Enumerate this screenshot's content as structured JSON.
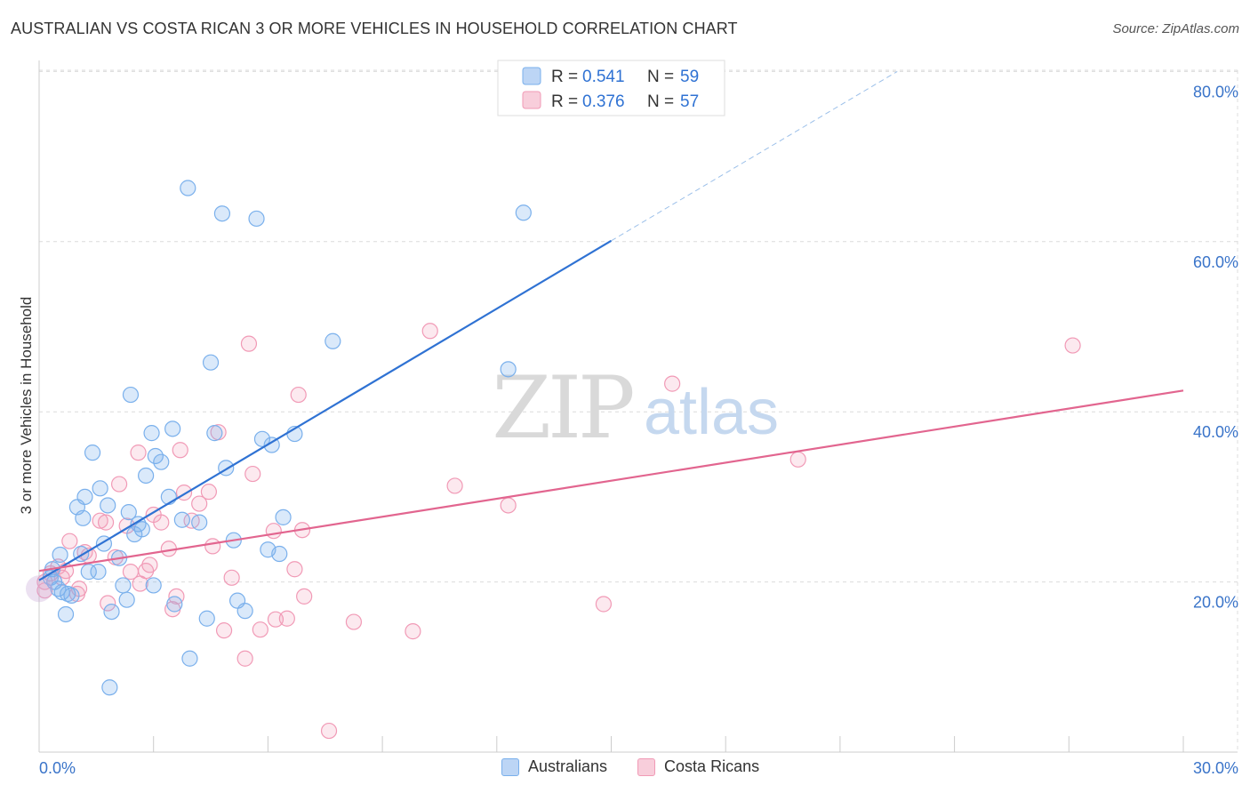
{
  "title": "AUSTRALIAN VS COSTA RICAN 3 OR MORE VEHICLES IN HOUSEHOLD CORRELATION CHART",
  "source": "Source: ZipAtlas.com",
  "watermark": {
    "zip": "ZIP",
    "atlas": "atlas"
  },
  "chart_data": {
    "type": "scatter",
    "xlabel": "",
    "ylabel": "3 or more Vehicles in Household",
    "xlim": [
      0,
      30
    ],
    "ylim": [
      0,
      82
    ],
    "x_tick_labels": [
      "0.0%",
      "30.0%"
    ],
    "y_ticks": [
      20,
      40,
      60,
      80
    ],
    "y_tick_labels": [
      "20.0%",
      "40.0%",
      "60.0%",
      "80.0%"
    ],
    "grid": true,
    "legend": [
      {
        "r_label": "R =",
        "r_value": "0.541",
        "n_label": "N =",
        "n_value": "59"
      },
      {
        "r_label": "R =",
        "r_value": "0.376",
        "n_label": "N =",
        "n_value": "57"
      }
    ],
    "series": [
      {
        "name": "Australians",
        "color": "#7ab0ec",
        "line_color": "#2f72d3",
        "trend": {
          "x0": 0,
          "y0": 20.2,
          "x1": 15,
          "y1": 60.1,
          "dashed_to_x": 22.5,
          "dashed_to_y": 80.0
        },
        "points": [
          [
            0.3,
            20.5
          ],
          [
            0.35,
            21.5
          ],
          [
            0.4,
            20.0
          ],
          [
            0.5,
            19.2
          ],
          [
            0.6,
            18.8
          ],
          [
            0.55,
            23.2
          ],
          [
            0.7,
            16.2
          ],
          [
            0.75,
            18.6
          ],
          [
            0.85,
            18.4
          ],
          [
            1.0,
            28.8
          ],
          [
            1.1,
            23.3
          ],
          [
            1.15,
            27.5
          ],
          [
            1.2,
            30.0
          ],
          [
            1.3,
            21.2
          ],
          [
            1.4,
            35.2
          ],
          [
            1.55,
            21.2
          ],
          [
            1.6,
            31.0
          ],
          [
            1.7,
            24.5
          ],
          [
            1.8,
            29.0
          ],
          [
            1.9,
            16.5
          ],
          [
            1.85,
            7.6
          ],
          [
            2.1,
            22.8
          ],
          [
            2.2,
            19.6
          ],
          [
            2.3,
            17.9
          ],
          [
            2.35,
            28.2
          ],
          [
            2.4,
            42.0
          ],
          [
            2.5,
            25.6
          ],
          [
            2.6,
            26.8
          ],
          [
            2.7,
            26.2
          ],
          [
            2.8,
            32.5
          ],
          [
            2.95,
            37.5
          ],
          [
            3.0,
            19.6
          ],
          [
            3.05,
            34.8
          ],
          [
            3.2,
            34.1
          ],
          [
            3.4,
            30.0
          ],
          [
            3.5,
            38.0
          ],
          [
            3.55,
            17.4
          ],
          [
            3.75,
            27.3
          ],
          [
            3.9,
            66.3
          ],
          [
            3.95,
            11.0
          ],
          [
            4.2,
            27.0
          ],
          [
            4.4,
            15.7
          ],
          [
            4.5,
            45.8
          ],
          [
            4.6,
            37.5
          ],
          [
            4.8,
            63.3
          ],
          [
            4.9,
            33.4
          ],
          [
            5.1,
            24.9
          ],
          [
            5.2,
            17.8
          ],
          [
            5.4,
            16.6
          ],
          [
            5.7,
            62.7
          ],
          [
            5.85,
            36.8
          ],
          [
            6.0,
            23.8
          ],
          [
            6.1,
            36.1
          ],
          [
            6.3,
            23.3
          ],
          [
            6.4,
            27.6
          ],
          [
            6.7,
            37.4
          ],
          [
            7.7,
            48.3
          ],
          [
            12.3,
            45.0
          ],
          [
            12.7,
            63.4
          ]
        ]
      },
      {
        "name": "Costa Ricans",
        "color": "#f19ab6",
        "line_color": "#e2658f",
        "trend": {
          "x0": 0,
          "y0": 21.3,
          "x1": 30,
          "y1": 42.5
        },
        "points": [
          [
            0.15,
            19.0
          ],
          [
            0.3,
            21.0
          ],
          [
            0.5,
            21.8
          ],
          [
            0.6,
            20.5
          ],
          [
            0.7,
            21.3
          ],
          [
            0.8,
            24.8
          ],
          [
            1.0,
            18.6
          ],
          [
            1.05,
            19.2
          ],
          [
            1.2,
            23.5
          ],
          [
            1.3,
            23.1
          ],
          [
            1.6,
            27.2
          ],
          [
            1.75,
            27.0
          ],
          [
            1.8,
            17.5
          ],
          [
            2.0,
            22.9
          ],
          [
            2.1,
            31.5
          ],
          [
            2.3,
            26.6
          ],
          [
            2.4,
            21.2
          ],
          [
            2.6,
            35.2
          ],
          [
            2.65,
            19.8
          ],
          [
            2.8,
            21.3
          ],
          [
            2.9,
            22.0
          ],
          [
            3.0,
            27.9
          ],
          [
            3.2,
            27.0
          ],
          [
            3.4,
            23.9
          ],
          [
            3.5,
            16.8
          ],
          [
            3.6,
            18.3
          ],
          [
            3.7,
            35.5
          ],
          [
            3.8,
            30.5
          ],
          [
            4.0,
            27.2
          ],
          [
            4.2,
            29.2
          ],
          [
            4.45,
            30.6
          ],
          [
            4.55,
            24.2
          ],
          [
            4.7,
            37.6
          ],
          [
            4.85,
            14.3
          ],
          [
            5.05,
            20.5
          ],
          [
            5.4,
            11.0
          ],
          [
            5.5,
            48.0
          ],
          [
            5.6,
            32.7
          ],
          [
            5.8,
            14.4
          ],
          [
            6.15,
            26.0
          ],
          [
            6.2,
            15.6
          ],
          [
            6.5,
            15.7
          ],
          [
            6.7,
            21.5
          ],
          [
            6.8,
            42.0
          ],
          [
            6.9,
            26.1
          ],
          [
            6.95,
            18.3
          ],
          [
            7.6,
            2.5
          ],
          [
            8.25,
            15.3
          ],
          [
            9.8,
            14.2
          ],
          [
            10.25,
            49.5
          ],
          [
            10.9,
            31.3
          ],
          [
            12.3,
            29.0
          ],
          [
            14.8,
            17.4
          ],
          [
            16.6,
            43.3
          ],
          [
            19.9,
            34.4
          ],
          [
            27.1,
            47.8
          ],
          [
            0.15,
            20.0
          ]
        ]
      }
    ]
  }
}
